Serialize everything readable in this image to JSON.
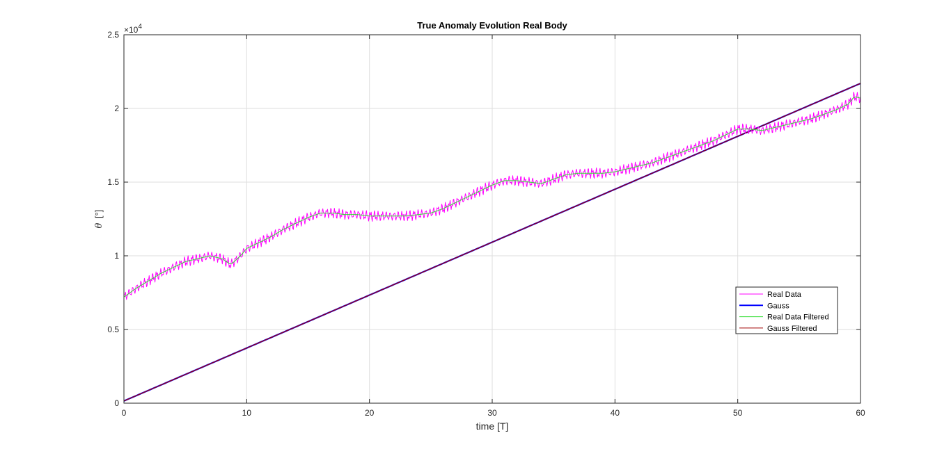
{
  "chart_data": {
    "type": "line",
    "title": "True Anomaly Evolution Real Body",
    "xlabel": "time [T]",
    "ylabel_symbol": "θ",
    "ylabel_unit": "[°]",
    "y_exponent_label": "×10",
    "y_exponent": "4",
    "xlim": [
      0,
      60
    ],
    "ylim": [
      0,
      25000
    ],
    "xticks": [
      0,
      10,
      20,
      30,
      40,
      50,
      60
    ],
    "yticks": [
      0,
      5000,
      10000,
      15000,
      20000,
      25000
    ],
    "ytick_labels": [
      "0",
      "0.5",
      "1",
      "1.5",
      "2",
      "2.5"
    ],
    "grid": true,
    "legend_position": "lower-right",
    "series": [
      {
        "name": "Real Data",
        "color": "#ff00ff",
        "noisy": true,
        "x": [
          0,
          1,
          2,
          3,
          4,
          5,
          6,
          7,
          8,
          8.7,
          9.5,
          10,
          11,
          12,
          13,
          14,
          15,
          16,
          17,
          18,
          19,
          20,
          21,
          22,
          23,
          24,
          25,
          26,
          27,
          28,
          29,
          30,
          31,
          32,
          33,
          34,
          35,
          36,
          37,
          38,
          39,
          40,
          41,
          42,
          43,
          44,
          45,
          46,
          47,
          48,
          49,
          50,
          51,
          52,
          53,
          54,
          55,
          56,
          57,
          58,
          59,
          59.5,
          60
        ],
        "y": [
          7200,
          7800,
          8300,
          8800,
          9200,
          9600,
          9800,
          10000,
          9800,
          9400,
          10000,
          10500,
          10900,
          11300,
          11800,
          12200,
          12600,
          12900,
          12900,
          12800,
          12800,
          12700,
          12700,
          12700,
          12700,
          12800,
          12900,
          13200,
          13600,
          14000,
          14400,
          14800,
          15100,
          15100,
          15000,
          14900,
          15200,
          15500,
          15600,
          15600,
          15600,
          15700,
          15900,
          16100,
          16300,
          16600,
          16900,
          17200,
          17500,
          17800,
          18200,
          18600,
          18600,
          18500,
          18700,
          18900,
          19100,
          19300,
          19600,
          19900,
          20300,
          20800,
          20700
        ]
      },
      {
        "name": "Gauss",
        "color": "#0000ff",
        "noisy": false,
        "x": [
          0,
          60
        ],
        "y": [
          150,
          21700
        ]
      },
      {
        "name": "Real Data Filtered",
        "color": "#33dd33",
        "noisy": false,
        "x": [
          0,
          1,
          2,
          3,
          4,
          5,
          6,
          7,
          8,
          8.7,
          9.5,
          10,
          11,
          12,
          13,
          14,
          15,
          16,
          17,
          18,
          19,
          20,
          21,
          22,
          23,
          24,
          25,
          26,
          27,
          28,
          29,
          30,
          31,
          32,
          33,
          34,
          35,
          36,
          37,
          38,
          39,
          40,
          41,
          42,
          43,
          44,
          45,
          46,
          47,
          48,
          49,
          50,
          51,
          52,
          53,
          54,
          55,
          56,
          57,
          58,
          59,
          59.5,
          60
        ],
        "y": [
          7200,
          7800,
          8300,
          8800,
          9200,
          9600,
          9800,
          10000,
          9800,
          9400,
          10000,
          10500,
          10900,
          11300,
          11800,
          12200,
          12600,
          12900,
          12900,
          12800,
          12800,
          12700,
          12700,
          12700,
          12700,
          12800,
          12900,
          13200,
          13600,
          14000,
          14400,
          14800,
          15100,
          15100,
          15000,
          14900,
          15200,
          15500,
          15600,
          15600,
          15600,
          15700,
          15900,
          16100,
          16300,
          16600,
          16900,
          17200,
          17500,
          17800,
          18200,
          18600,
          18600,
          18500,
          18700,
          18900,
          19100,
          19300,
          19600,
          19900,
          20300,
          20800,
          20700
        ]
      },
      {
        "name": "Gauss Filtered",
        "color": "#a00000",
        "noisy": false,
        "x": [
          0,
          60
        ],
        "y": [
          150,
          21700
        ]
      }
    ]
  }
}
